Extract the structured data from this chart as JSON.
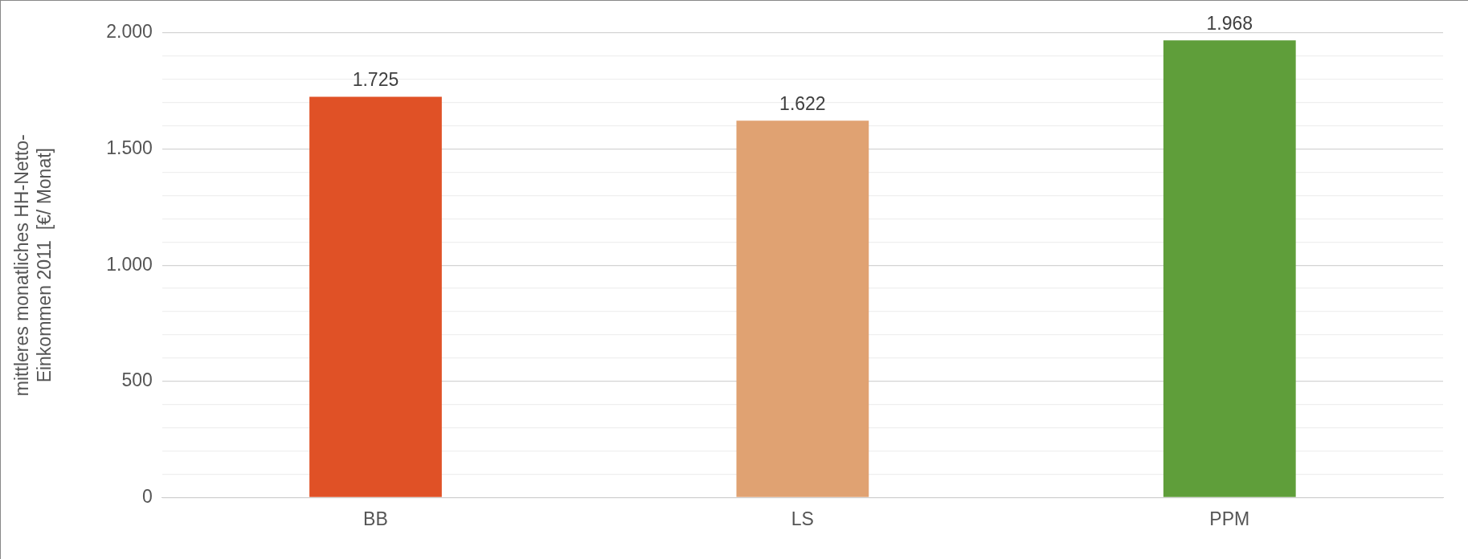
{
  "chart_data": {
    "type": "bar",
    "ylabel": "mittleres monatliches HH-Netto-Einkommen 2011  [€/ Monat]",
    "categories": [
      "BB",
      "LS",
      "PPM"
    ],
    "values": [
      1725,
      1622,
      1968
    ],
    "colors": [
      "#e05126",
      "#e0a272",
      "#5f9e3a"
    ],
    "value_labels": [
      "1.725",
      "1.622",
      "1.968"
    ],
    "ylim": [
      0,
      2000
    ],
    "yticks": [
      {
        "value": 0,
        "label": "0"
      },
      {
        "value": 100,
        "label": null
      },
      {
        "value": 200,
        "label": null
      },
      {
        "value": 300,
        "label": null
      },
      {
        "value": 400,
        "label": null
      },
      {
        "value": 500,
        "label": "500"
      },
      {
        "value": 600,
        "label": null
      },
      {
        "value": 700,
        "label": null
      },
      {
        "value": 800,
        "label": null
      },
      {
        "value": 900,
        "label": null
      },
      {
        "value": 1000,
        "label": "1.000"
      },
      {
        "value": 1100,
        "label": null
      },
      {
        "value": 1200,
        "label": null
      },
      {
        "value": 1300,
        "label": null
      },
      {
        "value": 1400,
        "label": null
      },
      {
        "value": 1500,
        "label": "1.500"
      },
      {
        "value": 1600,
        "label": null
      },
      {
        "value": 1700,
        "label": null
      },
      {
        "value": 1800,
        "label": null
      },
      {
        "value": 1900,
        "label": null
      },
      {
        "value": 2000,
        "label": "2.000"
      }
    ],
    "grid": "y"
  }
}
